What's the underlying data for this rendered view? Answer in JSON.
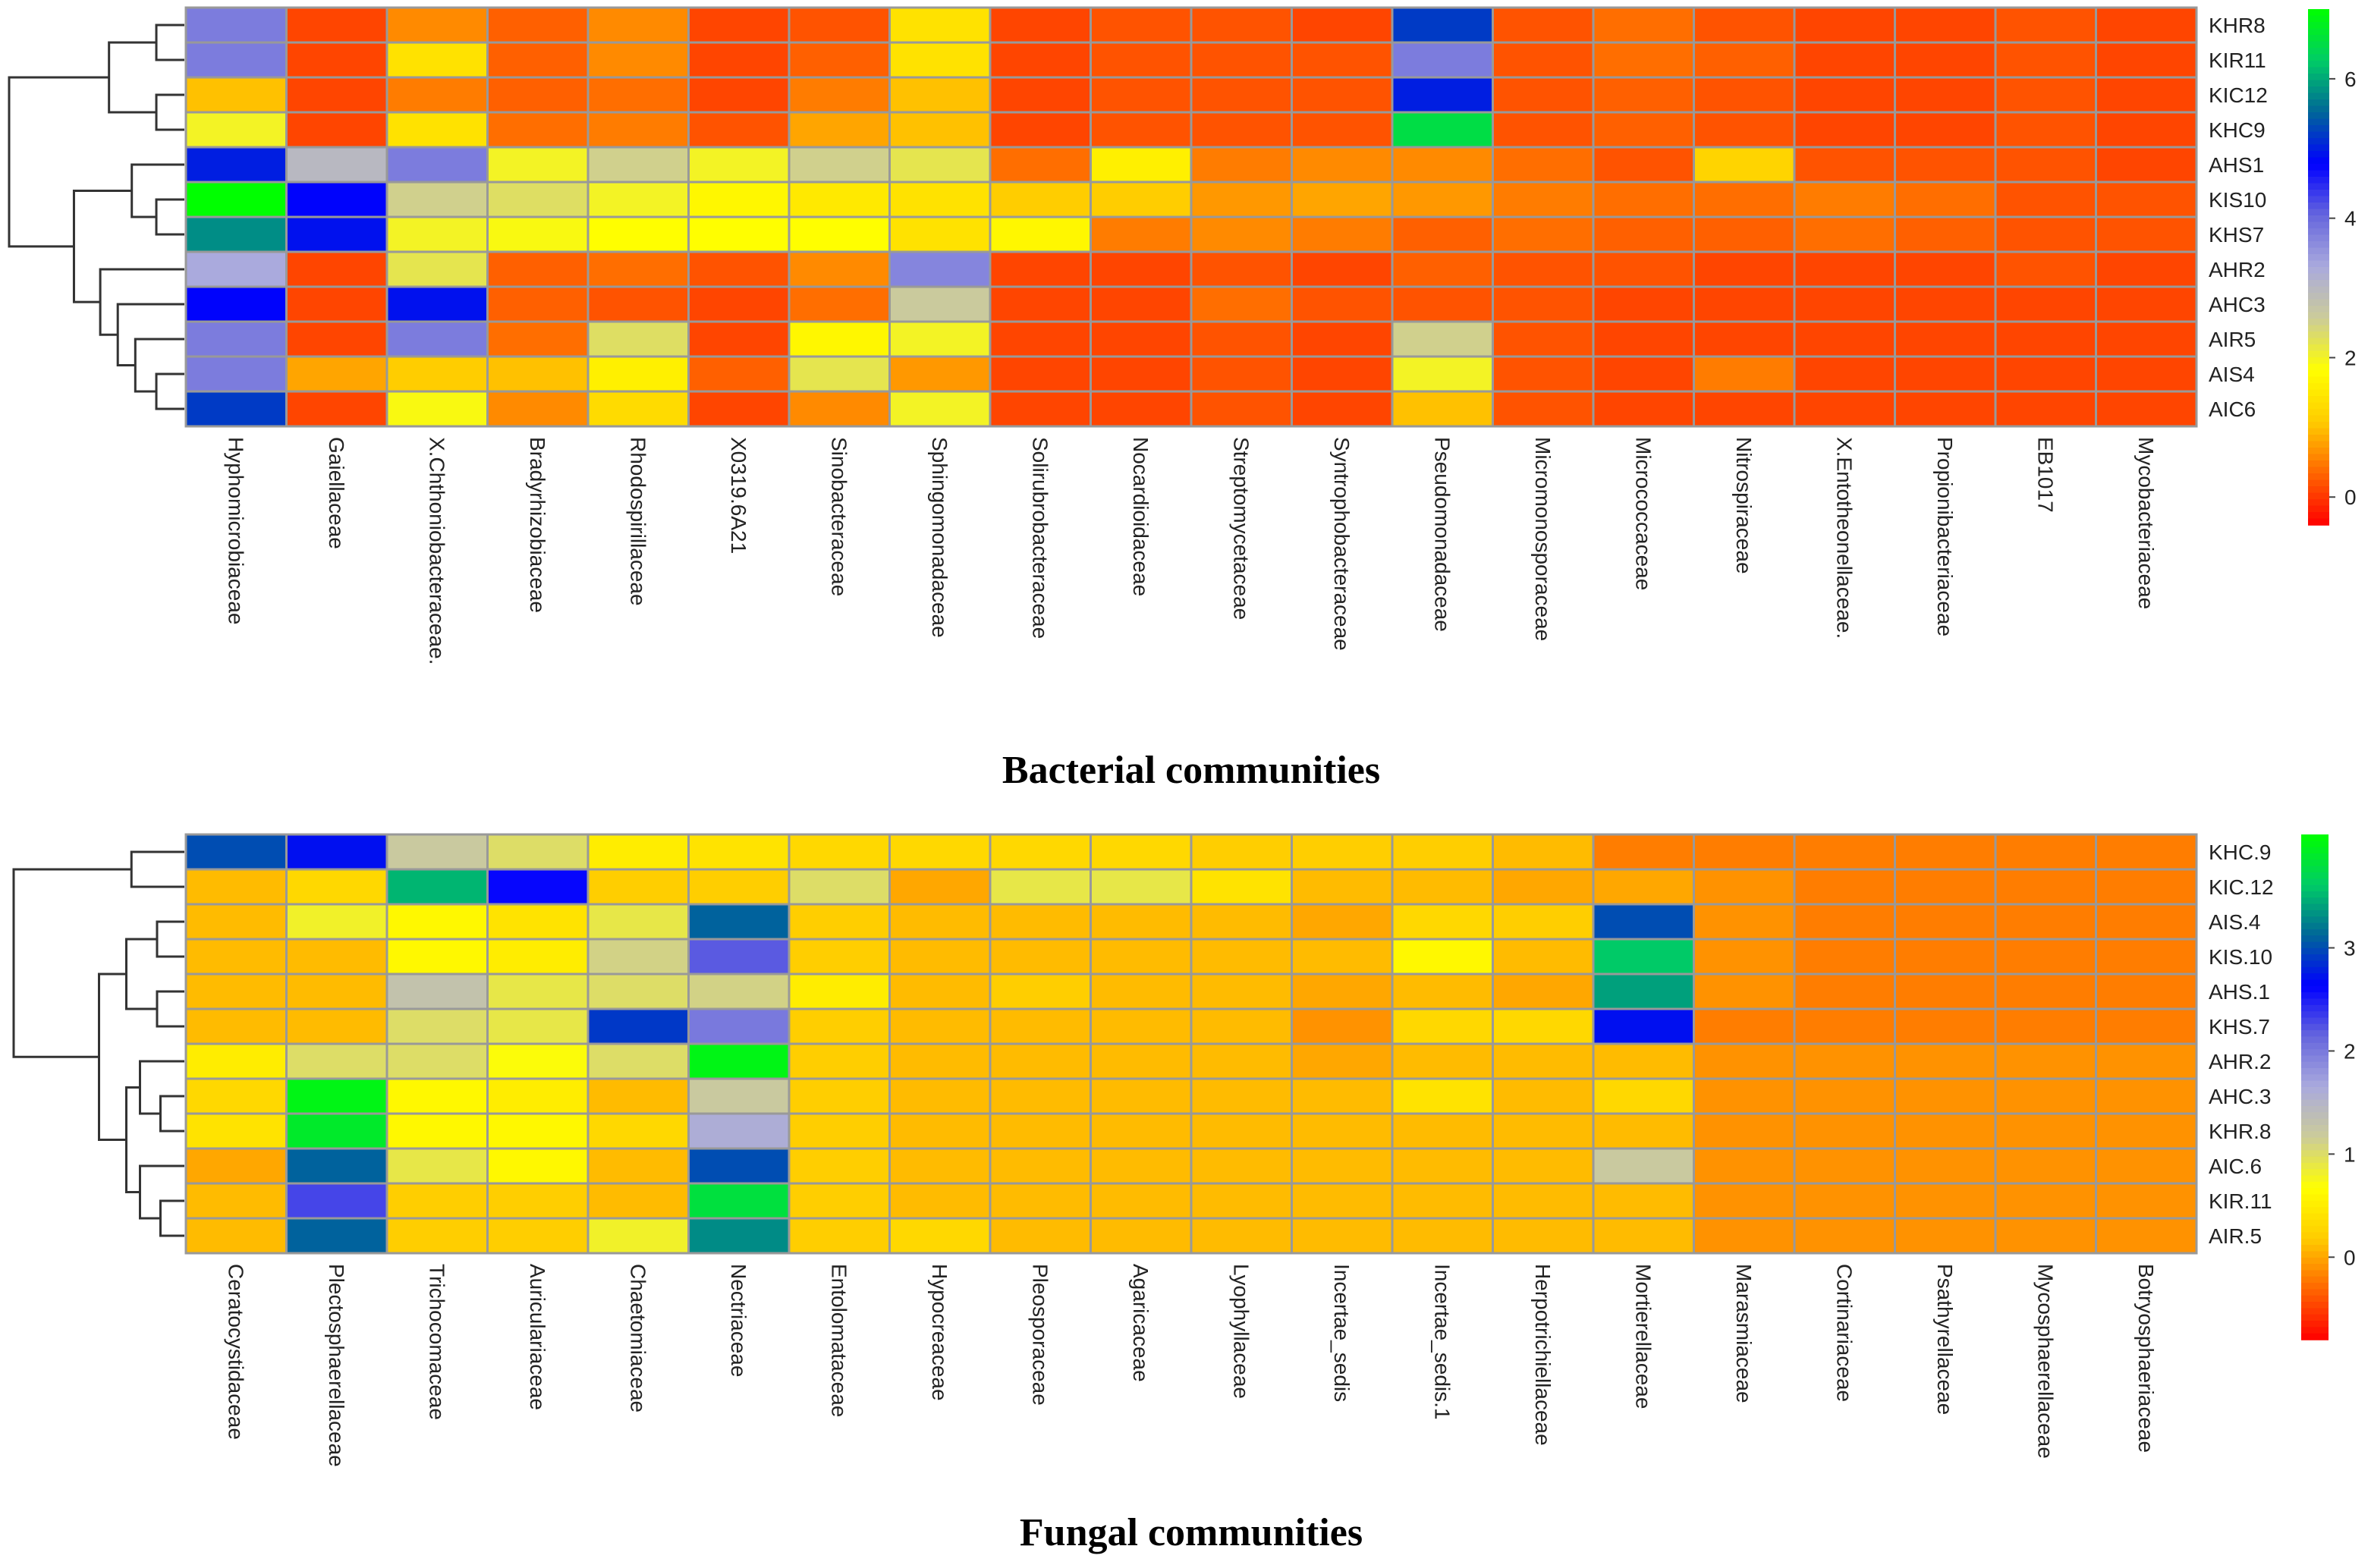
{
  "chart_data": [
    {
      "type": "heatmap",
      "title": "Bacterial communities",
      "rows": [
        "KHR8",
        "KIR11",
        "KIC12",
        "KHC9",
        "AHS1",
        "KIS10",
        "KHS7",
        "AHR2",
        "AHC3",
        "AIR5",
        "AIS4",
        "AIC6"
      ],
      "columns": [
        "Hyphomicrobiaceae",
        "Gaiellaceae",
        "X.Chthoniobacteraceae.",
        "Bradyrhizobiaceae",
        "Rhodospirillaceae",
        "X0319.6A21",
        "Sinobacteraceae",
        "Sphingomonadaceae",
        "Solirubrobacteraceae",
        "Nocardioidaceae",
        "Streptomycetaceae",
        "Syntrophobacteraceae",
        "Pseudomonadaceae",
        "Micromonosporaceae",
        "Micrococcaceae",
        "Nitrospiraceae",
        "X.Entotheonellaceae.",
        "Propionibacteriaceae",
        "EB1017",
        "Mycobacteriaceae"
      ],
      "values": [
        [
          3.8,
          0.1,
          0.6,
          0.3,
          0.6,
          0.1,
          0.2,
          1.4,
          0.1,
          0.2,
          0.2,
          0.1,
          5.2,
          0.2,
          0.4,
          0.2,
          0.1,
          0.1,
          0.2,
          0.1
        ],
        [
          3.8,
          0.1,
          1.4,
          0.3,
          0.6,
          0.1,
          0.3,
          1.4,
          0.1,
          0.2,
          0.2,
          0.2,
          3.8,
          0.2,
          0.4,
          0.3,
          0.1,
          0.1,
          0.2,
          0.1
        ],
        [
          1.0,
          0.1,
          0.5,
          0.3,
          0.4,
          0.1,
          0.5,
          1.0,
          0.1,
          0.2,
          0.2,
          0.2,
          5.0,
          0.2,
          0.3,
          0.2,
          0.1,
          0.1,
          0.2,
          0.1
        ],
        [
          2.0,
          0.1,
          1.4,
          0.4,
          0.5,
          0.2,
          0.8,
          1.0,
          0.1,
          0.2,
          0.2,
          0.2,
          6.5,
          0.2,
          0.3,
          0.2,
          0.1,
          0.1,
          0.2,
          0.1
        ],
        [
          5.0,
          3.0,
          3.8,
          2.0,
          2.5,
          2.0,
          2.5,
          2.2,
          0.4,
          1.6,
          0.5,
          0.6,
          0.6,
          0.4,
          0.2,
          1.2,
          0.2,
          0.2,
          0.2,
          0.1
        ],
        [
          7.0,
          4.8,
          2.5,
          2.3,
          2.0,
          1.7,
          1.5,
          1.4,
          1.1,
          1.1,
          0.7,
          0.8,
          0.7,
          0.5,
          0.4,
          0.4,
          0.5,
          0.4,
          0.2,
          0.2
        ],
        [
          5.8,
          4.9,
          2.0,
          1.9,
          1.8,
          1.8,
          1.8,
          1.4,
          1.7,
          0.5,
          0.6,
          0.5,
          0.3,
          0.4,
          0.3,
          0.3,
          0.4,
          0.3,
          0.2,
          0.2
        ],
        [
          3.3,
          0.1,
          2.2,
          0.3,
          0.4,
          0.2,
          0.6,
          3.7,
          0.1,
          0.1,
          0.2,
          0.1,
          0.3,
          0.2,
          0.2,
          0.1,
          0.1,
          0.1,
          0.2,
          0.1
        ],
        [
          4.8,
          0.1,
          4.9,
          0.3,
          0.2,
          0.1,
          0.4,
          2.6,
          0.1,
          0.1,
          0.4,
          0.2,
          0.2,
          0.2,
          0.1,
          0.1,
          0.1,
          0.1,
          0.1,
          0.1
        ],
        [
          3.8,
          0.1,
          3.8,
          0.4,
          2.3,
          0.1,
          1.7,
          2.0,
          0.1,
          0.1,
          0.2,
          0.1,
          2.5,
          0.2,
          0.1,
          0.1,
          0.1,
          0.1,
          0.1,
          0.1
        ],
        [
          3.8,
          0.8,
          1.1,
          1.0,
          1.6,
          0.3,
          2.2,
          0.7,
          0.1,
          0.1,
          0.2,
          0.1,
          2.0,
          0.2,
          0.1,
          0.5,
          0.1,
          0.1,
          0.1,
          0.1
        ],
        [
          5.2,
          0.1,
          1.9,
          0.6,
          1.3,
          0.1,
          0.6,
          2.0,
          0.1,
          0.1,
          0.2,
          0.1,
          1.0,
          0.2,
          0.1,
          0.1,
          0.1,
          0.1,
          0.1,
          0.1
        ]
      ],
      "colorbar": {
        "ticks": [
          0,
          2,
          4,
          6
        ],
        "tick_labels": [
          "0",
          "2",
          "4",
          "6"
        ],
        "range": [
          -0.4,
          7.0
        ]
      },
      "dendrogram": "rows"
    },
    {
      "type": "heatmap",
      "title": "Fungal communities",
      "rows": [
        "KHC.9",
        "KIC.12",
        "AIS.4",
        "KIS.10",
        "AHS.1",
        "KHS.7",
        "AHR.2",
        "AHC.3",
        "KHR.8",
        "AIC.6",
        "KIR.11",
        "AIR.5"
      ],
      "columns": [
        "Ceratocystidaceae",
        "Plectosphaerellaceae",
        "Trichocomaceae",
        "Auriculariaceae",
        "Chaetomiaceae",
        "Nectriaceae",
        "Entolomataceae",
        "Hypocreaceae",
        "Pleosporaceae",
        "Agaricaceae",
        "Lyophyllaceae",
        "Incertae_sedis",
        "Incertae_sedis.1",
        "Herpotrichiellaceae",
        "Mortierellaceae",
        "Marasmiaceae",
        "Cortinariaceae",
        "Psathyrellaceae",
        "Mycosphaerellaceae",
        "Botryosphaeriaceae"
      ],
      "values": [
        [
          3.0,
          2.7,
          1.2,
          1.0,
          0.5,
          0.4,
          0.3,
          0.3,
          0.3,
          0.3,
          0.2,
          0.2,
          0.2,
          0.1,
          -0.2,
          -0.2,
          -0.2,
          -0.2,
          -0.2,
          -0.2
        ],
        [
          0.1,
          0.3,
          3.5,
          2.6,
          0.2,
          0.2,
          1.0,
          0.0,
          0.9,
          0.9,
          0.4,
          0.1,
          0.1,
          0.0,
          0.0,
          -0.1,
          -0.2,
          -0.2,
          -0.2,
          -0.2
        ],
        [
          0.1,
          0.8,
          0.6,
          0.4,
          0.9,
          3.1,
          0.2,
          0.1,
          0.1,
          0.1,
          0.1,
          0.0,
          0.3,
          0.2,
          3.0,
          -0.1,
          -0.2,
          -0.2,
          -0.2,
          -0.2
        ],
        [
          0.1,
          0.1,
          0.6,
          0.5,
          1.1,
          2.2,
          0.2,
          0.1,
          0.1,
          0.1,
          0.1,
          0.1,
          0.6,
          0.1,
          3.6,
          -0.1,
          -0.2,
          -0.2,
          -0.2,
          -0.2
        ],
        [
          0.1,
          0.1,
          1.3,
          0.9,
          1.0,
          1.1,
          0.5,
          0.1,
          0.2,
          0.1,
          0.1,
          0.0,
          0.1,
          0.0,
          3.4,
          -0.1,
          -0.2,
          -0.2,
          -0.2,
          -0.2
        ],
        [
          0.1,
          0.1,
          1.0,
          0.9,
          2.9,
          2.0,
          0.2,
          0.1,
          0.1,
          0.1,
          0.1,
          -0.1,
          0.3,
          0.3,
          2.7,
          -0.2,
          -0.2,
          -0.2,
          -0.2,
          -0.2
        ],
        [
          0.5,
          1.0,
          1.0,
          0.7,
          1.0,
          4.0,
          0.2,
          0.1,
          0.1,
          0.1,
          0.1,
          0.0,
          0.1,
          0.1,
          0.1,
          -0.1,
          -0.1,
          -0.1,
          -0.1,
          -0.1
        ],
        [
          0.3,
          4.0,
          0.6,
          0.5,
          0.1,
          1.2,
          0.2,
          0.1,
          0.1,
          0.1,
          0.1,
          0.1,
          0.4,
          0.1,
          0.3,
          -0.1,
          -0.1,
          -0.1,
          -0.1,
          -0.1
        ],
        [
          0.4,
          3.9,
          0.6,
          0.6,
          0.3,
          1.6,
          0.2,
          0.1,
          0.1,
          0.1,
          0.1,
          0.1,
          0.1,
          0.1,
          0.1,
          -0.1,
          -0.1,
          -0.1,
          -0.1,
          -0.1
        ],
        [
          0.0,
          3.1,
          0.9,
          0.6,
          0.1,
          3.0,
          0.2,
          0.1,
          0.1,
          0.1,
          0.1,
          0.1,
          0.1,
          0.1,
          1.2,
          -0.1,
          -0.1,
          -0.1,
          -0.1,
          -0.1
        ],
        [
          0.1,
          2.3,
          0.2,
          0.2,
          0.1,
          3.8,
          0.2,
          0.1,
          0.1,
          0.1,
          0.1,
          0.1,
          0.1,
          0.1,
          0.1,
          -0.1,
          -0.1,
          -0.1,
          -0.1,
          -0.1
        ],
        [
          0.1,
          3.1,
          0.2,
          0.2,
          0.8,
          3.3,
          0.2,
          0.3,
          0.1,
          0.1,
          0.1,
          0.1,
          0.1,
          0.1,
          0.1,
          -0.1,
          -0.1,
          -0.1,
          -0.1,
          -0.1
        ]
      ],
      "colorbar": {
        "ticks": [
          0,
          1,
          2,
          3
        ],
        "tick_labels": [
          "0",
          "1",
          "2",
          "3"
        ],
        "range": [
          -0.8,
          4.1
        ]
      },
      "dendrogram": "rows"
    }
  ],
  "colors": {
    "palette": [
      "#ff0000",
      "#ff6600",
      "#ffcc00",
      "#ffff00",
      "#cccc99",
      "#aaaadd",
      "#6666dd",
      "#0000ff",
      "#006699",
      "#00cc66",
      "#00ff00"
    ],
    "cell_border": "#999999"
  }
}
